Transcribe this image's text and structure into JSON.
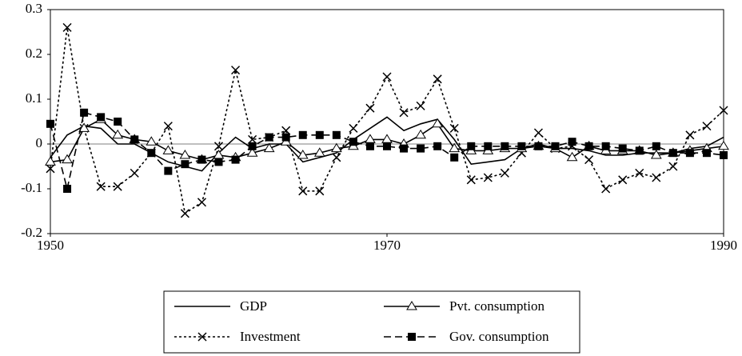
{
  "chart_data": {
    "type": "line",
    "x": [
      1950,
      1951,
      1952,
      1953,
      1954,
      1955,
      1956,
      1957,
      1958,
      1959,
      1960,
      1961,
      1962,
      1963,
      1964,
      1965,
      1966,
      1967,
      1968,
      1969,
      1970,
      1971,
      1972,
      1973,
      1974,
      1975,
      1976,
      1977,
      1978,
      1979,
      1980,
      1981,
      1982,
      1983,
      1984,
      1985,
      1986,
      1987,
      1988,
      1989,
      1990
    ],
    "xlim": [
      1950,
      1990
    ],
    "xticks": [
      1950,
      1970,
      1990
    ],
    "ylim": [
      -0.2,
      0.3
    ],
    "yticks": [
      -0.2,
      -0.1,
      0,
      0.1,
      0.2,
      0.3
    ],
    "zero_line": true,
    "series": [
      {
        "name": "GDP",
        "color": "#000000",
        "line_style": "solid",
        "marker": "none",
        "values": [
          -0.03,
          0.02,
          0.04,
          0.035,
          0.0,
          0.0,
          -0.02,
          -0.04,
          -0.05,
          -0.06,
          -0.02,
          0.015,
          -0.01,
          0.0,
          0.0,
          -0.04,
          -0.03,
          -0.02,
          0.01,
          0.035,
          0.06,
          0.03,
          0.045,
          0.055,
          0.01,
          -0.045,
          -0.04,
          -0.035,
          -0.01,
          0.0,
          -0.01,
          -0.01,
          -0.015,
          -0.025,
          -0.025,
          -0.02,
          -0.02,
          -0.02,
          -0.01,
          -0.005,
          0.015
        ]
      },
      {
        "name": "Investment",
        "color": "#000000",
        "line_style": "dotted",
        "marker": "x",
        "values": [
          -0.055,
          0.26,
          0.035,
          -0.095,
          -0.095,
          -0.065,
          -0.02,
          0.04,
          -0.155,
          -0.13,
          -0.005,
          0.165,
          0.01,
          0.015,
          0.03,
          -0.105,
          -0.105,
          -0.03,
          0.035,
          0.08,
          0.15,
          0.07,
          0.085,
          0.145,
          0.035,
          -0.08,
          -0.075,
          -0.065,
          -0.02,
          0.025,
          -0.01,
          -0.005,
          -0.035,
          -0.1,
          -0.08,
          -0.065,
          -0.075,
          -0.05,
          0.02,
          0.04,
          0.075
        ]
      },
      {
        "name": "Pvt. consumption",
        "color": "#000000",
        "line_style": "solid",
        "marker": "triangle",
        "values": [
          -0.04,
          -0.035,
          0.035,
          0.055,
          0.02,
          0.01,
          0.005,
          -0.015,
          -0.025,
          -0.035,
          -0.025,
          -0.03,
          -0.02,
          -0.01,
          0.005,
          -0.025,
          -0.02,
          -0.01,
          -0.005,
          0.01,
          0.01,
          0.0,
          0.02,
          0.045,
          -0.01,
          -0.015,
          -0.015,
          -0.01,
          -0.01,
          -0.005,
          -0.01,
          -0.03,
          -0.005,
          -0.015,
          -0.015,
          -0.015,
          -0.025,
          -0.02,
          -0.015,
          -0.01,
          -0.005
        ]
      },
      {
        "name": "Gov. consumption",
        "color": "#000000",
        "line_style": "dashed",
        "marker": "square",
        "values": [
          0.045,
          -0.1,
          0.07,
          0.06,
          0.05,
          0.01,
          -0.02,
          -0.06,
          -0.045,
          -0.035,
          -0.04,
          -0.035,
          -0.005,
          0.015,
          0.015,
          0.02,
          0.02,
          0.02,
          0.005,
          -0.005,
          -0.005,
          -0.01,
          -0.01,
          -0.005,
          -0.03,
          -0.005,
          -0.005,
          -0.005,
          -0.005,
          -0.005,
          -0.005,
          0.005,
          -0.005,
          -0.005,
          -0.01,
          -0.015,
          -0.005,
          -0.02,
          -0.02,
          -0.02,
          -0.025
        ]
      }
    ]
  }
}
